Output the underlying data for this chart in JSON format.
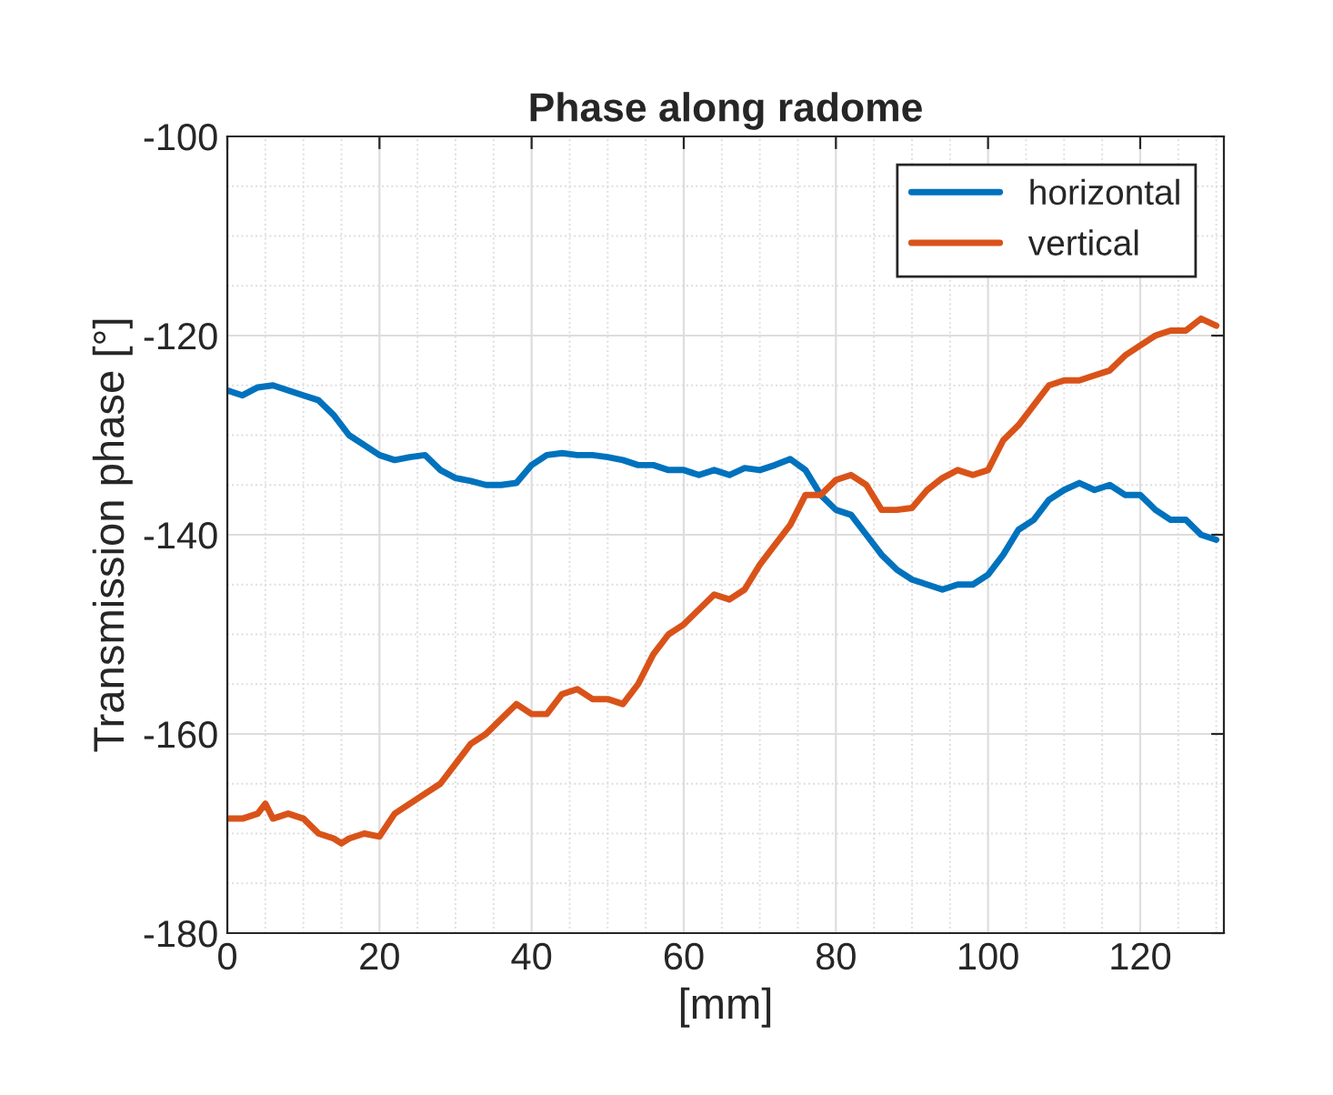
{
  "chart_data": {
    "type": "line",
    "title": "Phase along radome",
    "xlabel": "[mm]",
    "ylabel": "Transmission phase [°]",
    "xlim": [
      0,
      131
    ],
    "xticks": [
      0,
      20,
      40,
      60,
      80,
      100,
      120
    ],
    "ylim": [
      -180,
      -100
    ],
    "yticks": [
      -180,
      -160,
      -140,
      -120,
      -100
    ],
    "grid": true,
    "legend": "top right",
    "series": [
      {
        "name": "horizontal",
        "color": "#0072bd",
        "x": [
          0,
          2,
          4,
          6,
          8,
          10,
          12,
          14,
          16,
          18,
          20,
          22,
          24,
          26,
          28,
          30,
          32,
          34,
          36,
          38,
          40,
          42,
          44,
          46,
          48,
          50,
          52,
          54,
          56,
          58,
          60,
          62,
          64,
          66,
          68,
          70,
          72,
          74,
          76,
          78,
          80,
          82,
          84,
          86,
          88,
          90,
          92,
          94,
          96,
          98,
          100,
          102,
          104,
          106,
          108,
          110,
          112,
          114,
          116,
          118,
          120,
          122,
          124,
          126,
          128,
          130
        ],
        "values": [
          -125.5,
          -126,
          -125.2,
          -125,
          -125.5,
          -126,
          -126.5,
          -128,
          -130,
          -131,
          -132,
          -132.5,
          -132.2,
          -132,
          -133.5,
          -134.3,
          -134.6,
          -135,
          -135,
          -134.8,
          -133,
          -132,
          -131.8,
          -132,
          -132,
          -132.2,
          -132.5,
          -133,
          -133,
          -133.5,
          -133.5,
          -134,
          -133.5,
          -134,
          -133.3,
          -133.5,
          -133,
          -132.4,
          -133.5,
          -136,
          -137.5,
          -138,
          -140,
          -142,
          -143.5,
          -144.5,
          -145,
          -145.5,
          -145,
          -145,
          -144,
          -142,
          -139.5,
          -138.5,
          -136.5,
          -135.5,
          -134.8,
          -135.5,
          -135,
          -136,
          -136,
          -137.5,
          -138.5,
          -138.5,
          -140,
          -140.5
        ]
      },
      {
        "name": "vertical",
        "color": "#d95319",
        "x": [
          0,
          2,
          4,
          5,
          6,
          8,
          10,
          12,
          14,
          15,
          16,
          18,
          20,
          22,
          24,
          26,
          28,
          30,
          32,
          34,
          36,
          38,
          40,
          42,
          44,
          46,
          48,
          50,
          52,
          54,
          56,
          58,
          60,
          62,
          64,
          66,
          68,
          70,
          72,
          74,
          76,
          78,
          80,
          82,
          84,
          86,
          88,
          90,
          92,
          94,
          96,
          98,
          100,
          102,
          104,
          106,
          108,
          110,
          112,
          114,
          116,
          118,
          120,
          122,
          124,
          126,
          128,
          130
        ],
        "values": [
          -168.5,
          -168.5,
          -168,
          -167,
          -168.5,
          -168,
          -168.5,
          -170,
          -170.5,
          -171,
          -170.5,
          -170,
          -170.3,
          -168,
          -167,
          -166,
          -165,
          -163,
          -161,
          -160,
          -158.5,
          -157,
          -158,
          -158,
          -156,
          -155.5,
          -156.5,
          -156.5,
          -157,
          -155,
          -152,
          -150,
          -149,
          -147.5,
          -146,
          -146.5,
          -145.5,
          -143,
          -141,
          -139,
          -136,
          -136,
          -134.5,
          -134,
          -135,
          -137.5,
          -137.5,
          -137.3,
          -135.5,
          -134.3,
          -133.5,
          -134,
          -133.5,
          -130.5,
          -129,
          -127,
          -125,
          -124.5,
          -124.5,
          -124,
          -123.5,
          -122,
          -121,
          -120,
          -119.5,
          -119.5,
          -118.3,
          -119
        ]
      }
    ]
  }
}
